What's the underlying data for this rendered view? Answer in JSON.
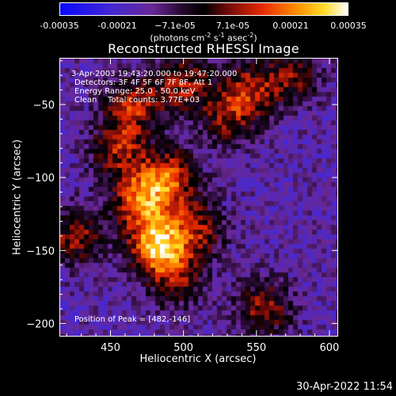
{
  "colorbar": {
    "ticks": [
      "-0.00035",
      "-0.00021",
      "−7.1e-05",
      "7.1e-05",
      "0.00021",
      "0.00035"
    ],
    "units_prefix": "(photons cm",
    "units_exp1": "-2",
    "units_mid": " s",
    "units_exp2": "-1",
    "units_mid2": " asec",
    "units_exp3": "-2",
    "units_suffix": ")",
    "range": [
      -0.00035,
      0.00035
    ]
  },
  "title": "Reconstructed RHESSI Image",
  "annotations": {
    "time_range": "3-Apr-2003 19:43:20.000 to 19:47:20.000",
    "detectors": "Detectors: 3F 4F 5F 6F 7F 8F, Att 1",
    "energy": "Energy Range: 25.0 - 50.0 keV",
    "clean": "Clean",
    "counts": "Total counts: 3.77E+03",
    "peak": "Position of Peak = [482,-146]"
  },
  "timestamp": "30-Apr-2022 11:54",
  "chart_data": {
    "type": "heatmap",
    "title": "Reconstructed RHESSI Image",
    "xlabel": "Heliocentric X (arcsec)",
    "ylabel": "Heliocentric Y (arcsec)",
    "xlim": [
      415,
      606
    ],
    "ylim": [
      -209,
      -18
    ],
    "xticks": [
      450,
      500,
      550,
      600
    ],
    "yticks": [
      -50,
      -100,
      -150,
      -200
    ],
    "xtick_labels": [
      "450",
      "500",
      "550",
      "600"
    ],
    "ytick_labels": [
      "−50",
      "−100",
      "−150",
      "−200"
    ],
    "colorscale": "red-temperature",
    "value_range": [
      -0.00035,
      0.00035
    ],
    "peak_position": [
      482,
      -146
    ],
    "sources": [
      {
        "x": 482,
        "y": -146,
        "amp": 1.0
      },
      {
        "x": 470,
        "y": -115,
        "amp": 0.75
      },
      {
        "x": 490,
        "y": -100,
        "amp": 0.7
      },
      {
        "x": 455,
        "y": -80,
        "amp": 0.55
      },
      {
        "x": 465,
        "y": -50,
        "amp": 0.6
      },
      {
        "x": 500,
        "y": -35,
        "amp": 0.55
      },
      {
        "x": 545,
        "y": -40,
        "amp": 0.55
      },
      {
        "x": 575,
        "y": -30,
        "amp": 0.45
      },
      {
        "x": 425,
        "y": -140,
        "amp": 0.55
      },
      {
        "x": 510,
        "y": -135,
        "amp": 0.5
      },
      {
        "x": 495,
        "y": -170,
        "amp": 0.45
      },
      {
        "x": 555,
        "y": -190,
        "amp": 0.55
      },
      {
        "x": 530,
        "y": -60,
        "amp": 0.45
      }
    ]
  }
}
